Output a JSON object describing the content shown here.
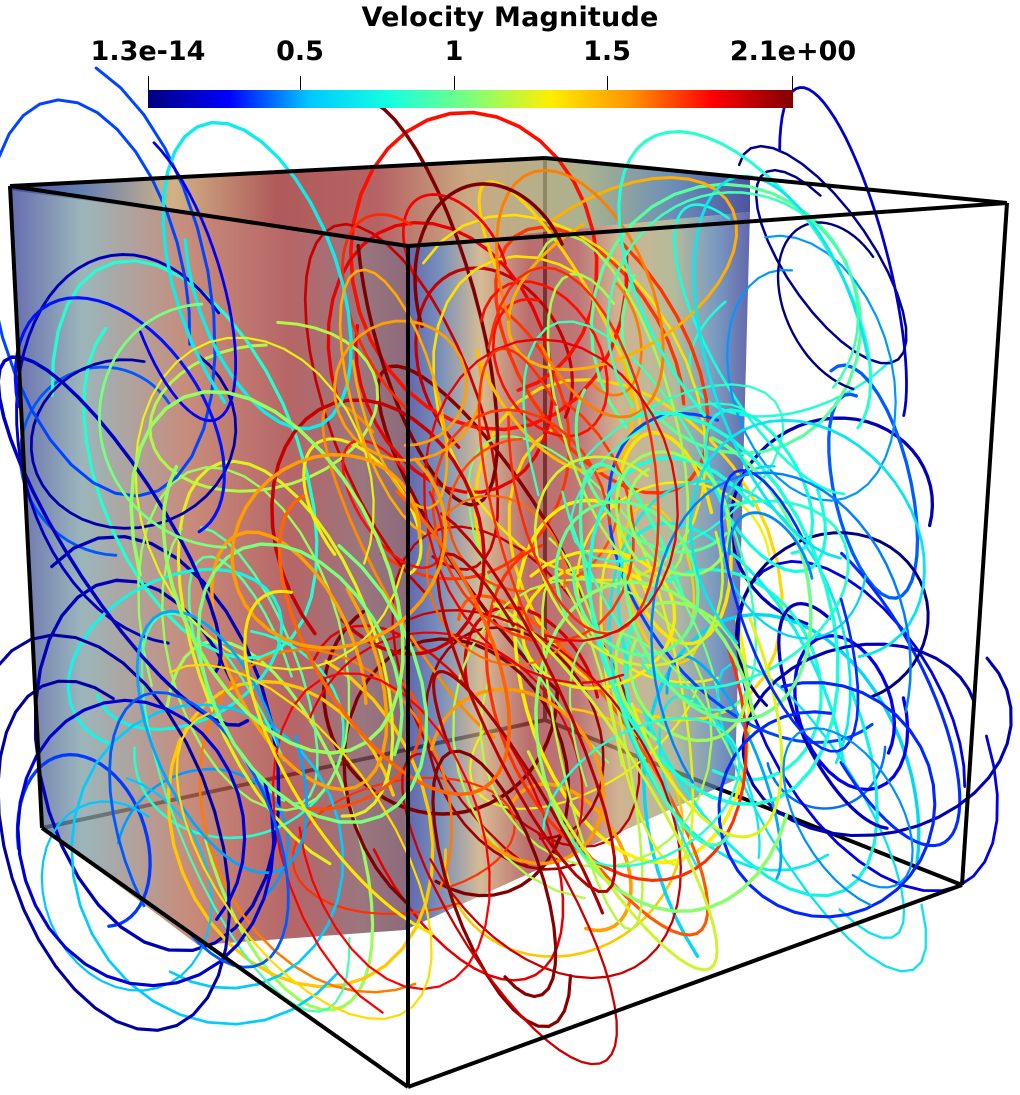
{
  "legend": {
    "title": "Velocity Magnitude",
    "ticks": [
      "1.3e-14",
      "0.5",
      "1",
      "1.5",
      "2.1e+00"
    ],
    "range": [
      1.3e-14,
      2.1
    ],
    "colormap": [
      "#00007f",
      "#0000ff",
      "#00c8ff",
      "#15ffe1",
      "#7dff7a",
      "#ffee00",
      "#ff9200",
      "#ff0000",
      "#7f0000"
    ]
  }
}
